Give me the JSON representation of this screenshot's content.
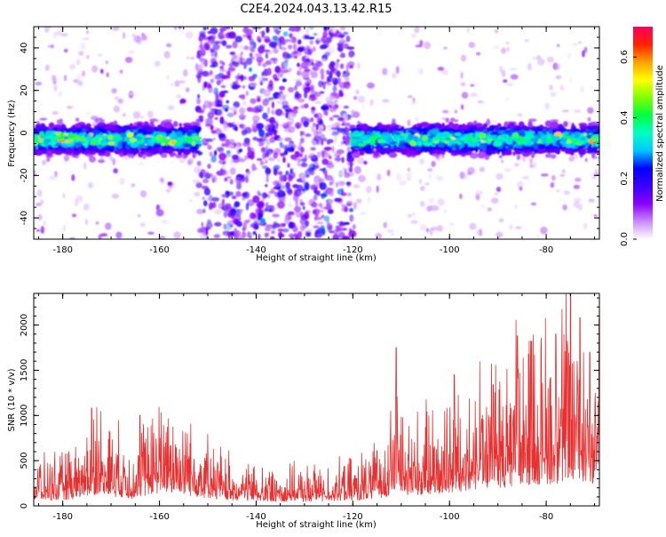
{
  "title": "C2E4.2024.043.13.42.R15",
  "chart_data": [
    {
      "type": "heatmap",
      "xlabel": "Height of straight line (km)",
      "ylabel": "Frequency (Hz)",
      "xlim": [
        -186,
        -69
      ],
      "ylim": [
        -50,
        50
      ],
      "x_ticks": [
        -180,
        -160,
        -140,
        -120,
        -100,
        -80
      ],
      "y_ticks": [
        -40,
        -20,
        0,
        20,
        40
      ],
      "colorbar": {
        "label": "Normalized spectral amplitude",
        "range": [
          0.0,
          0.7
        ],
        "ticks": [
          0.0,
          0.2,
          0.4,
          0.6
        ],
        "colors": [
          "#ffffff",
          "#c98aff",
          "#8a00ff",
          "#3b00ff",
          "#0000ff",
          "#00c8ff",
          "#00ffc0",
          "#00ff40",
          "#80ff00",
          "#ffff00",
          "#ffa000",
          "#ff2000",
          "#ff0060"
        ]
      },
      "band": {
        "center_hz": -3,
        "half_width_hz": 6,
        "gap_km": [
          -152,
          -120
        ],
        "peak_amplitude": 0.62
      }
    },
    {
      "type": "line",
      "xlabel": "Height of straight line (km)",
      "ylabel": "SNR (10 * v/v)",
      "xlim": [
        -186,
        -69
      ],
      "ylim": [
        0,
        2350
      ],
      "x_ticks": [
        -180,
        -160,
        -140,
        -120,
        -100,
        -80
      ],
      "y_ticks": [
        0,
        500,
        1000,
        1500,
        2000
      ],
      "color": "#e83030",
      "envelope": [
        [
          -186,
          230
        ],
        [
          -180,
          250
        ],
        [
          -176,
          330
        ],
        [
          -173,
          520
        ],
        [
          -170,
          420
        ],
        [
          -166,
          300
        ],
        [
          -162,
          480
        ],
        [
          -158,
          560
        ],
        [
          -155,
          470
        ],
        [
          -150,
          320
        ],
        [
          -145,
          240
        ],
        [
          -140,
          200
        ],
        [
          -135,
          190
        ],
        [
          -130,
          190
        ],
        [
          -125,
          200
        ],
        [
          -120,
          230
        ],
        [
          -116,
          280
        ],
        [
          -113,
          400
        ],
        [
          -111,
          620
        ],
        [
          -109,
          480
        ],
        [
          -106,
          440
        ],
        [
          -102,
          520
        ],
        [
          -98,
          620
        ],
        [
          -94,
          700
        ],
        [
          -90,
          780
        ],
        [
          -86,
          860
        ],
        [
          -82,
          900
        ],
        [
          -78,
          960
        ],
        [
          -75,
          1050
        ],
        [
          -72,
          980
        ],
        [
          -69,
          940
        ]
      ],
      "peaks": [
        [
          -174,
          1080
        ],
        [
          -164,
          1000
        ],
        [
          -111,
          1750
        ],
        [
          -99,
          1450
        ],
        [
          -91,
          1340
        ],
        [
          -86,
          1880
        ],
        [
          -83,
          1820
        ],
        [
          -78,
          1900
        ],
        [
          -75,
          2350
        ],
        [
          -73,
          2080
        ],
        [
          -71,
          1700
        ]
      ]
    }
  ]
}
